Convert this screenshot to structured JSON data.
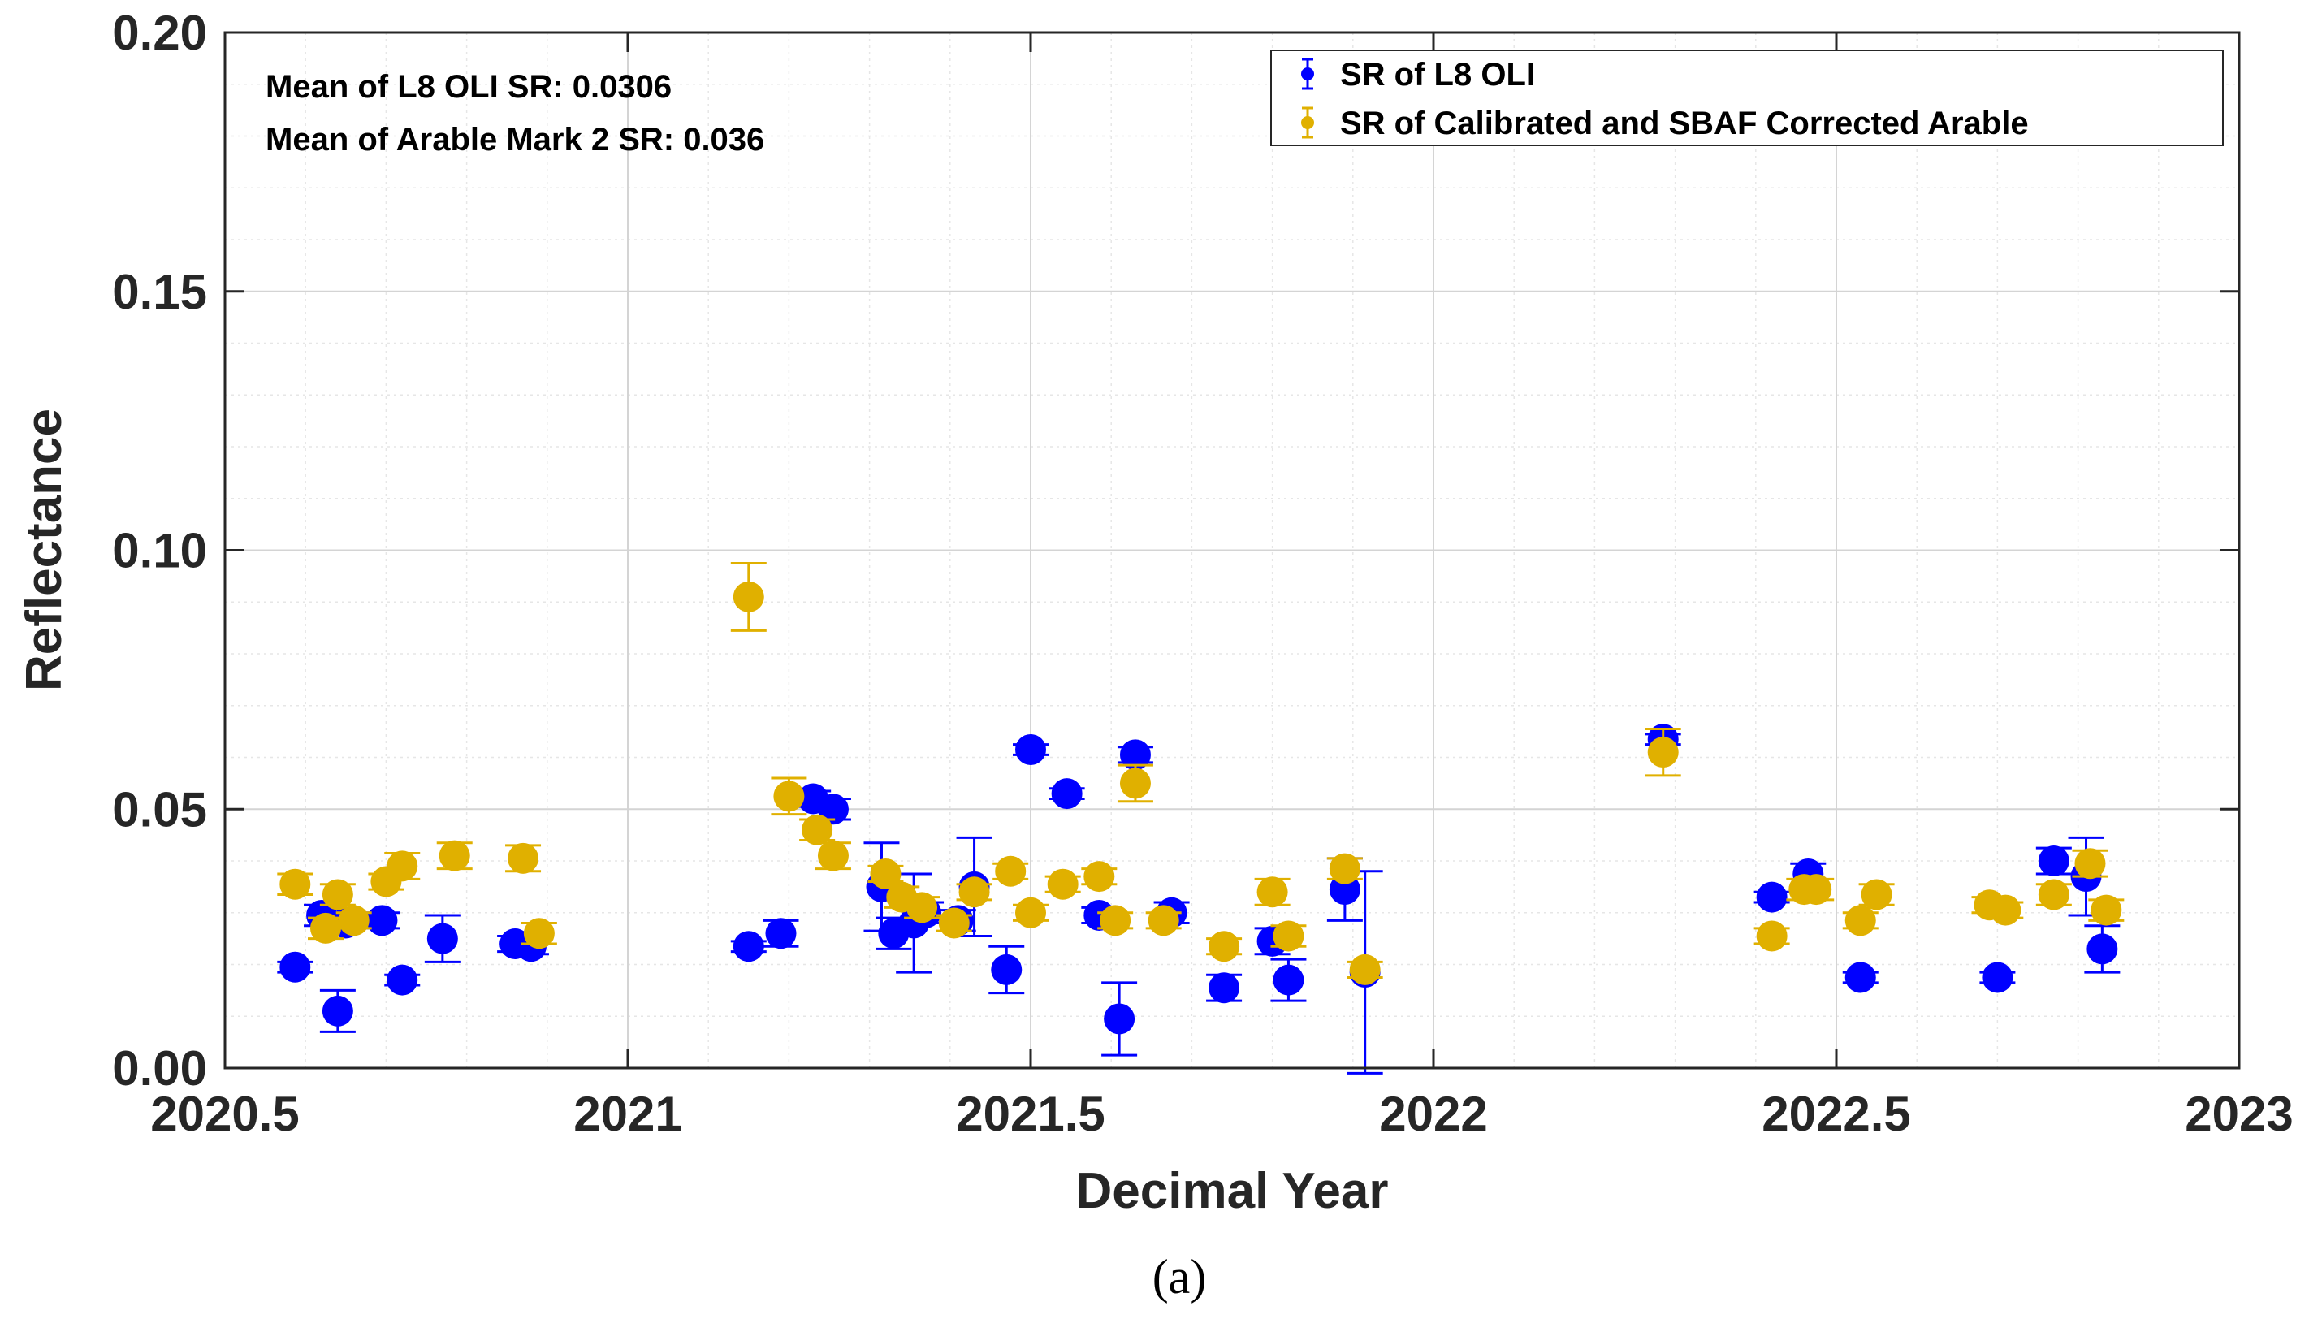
{
  "chart_data": {
    "type": "scatter",
    "title": "",
    "xlabel": "Decimal Year",
    "ylabel": "Reflectance",
    "xlim": [
      2020.5,
      2023
    ],
    "ylim": [
      0,
      0.2
    ],
    "x_ticks": [
      2020.5,
      2021,
      2021.5,
      2022,
      2022.5,
      2023
    ],
    "x_tick_labels": [
      "2020.5",
      "2021",
      "2021.5",
      "2022",
      "2022.5",
      "2023"
    ],
    "y_ticks": [
      0,
      0.05,
      0.1,
      0.15,
      0.2
    ],
    "y_tick_labels": [
      "0.00",
      "0.05",
      "0.10",
      "0.15",
      "0.20"
    ],
    "grid": true,
    "legend_position": "top-right",
    "annotations": [
      "Mean of L8 OLI SR: 0.0306",
      "Mean of Arable Mark 2 SR: 0.036"
    ],
    "caption": "(a)",
    "series": [
      {
        "name": "SR of L8 OLI",
        "color": "#0000ff",
        "x": [
          2020.587,
          2020.62,
          2020.64,
          2020.65,
          2020.695,
          2020.72,
          2020.77,
          2020.86,
          2020.88,
          2021.15,
          2021.19,
          2021.23,
          2021.255,
          2021.315,
          2021.33,
          2021.355,
          2021.37,
          2021.41,
          2021.43,
          2021.47,
          2021.5,
          2021.545,
          2021.585,
          2021.61,
          2021.63,
          2021.675,
          2021.74,
          2021.8,
          2021.82,
          2021.89,
          2021.915,
          2022.285,
          2022.42,
          2022.465,
          2022.53,
          2022.7,
          2022.77,
          2022.81,
          2022.83
        ],
        "y": [
          0.0195,
          0.0295,
          0.011,
          0.028,
          0.0285,
          0.017,
          0.025,
          0.024,
          0.0235,
          0.0235,
          0.026,
          0.052,
          0.05,
          0.035,
          0.026,
          0.028,
          0.03,
          0.0285,
          0.035,
          0.019,
          0.0615,
          0.053,
          0.0295,
          0.0095,
          0.0605,
          0.03,
          0.0155,
          0.0245,
          0.017,
          0.0345,
          0.0185,
          0.0635,
          0.033,
          0.0375,
          0.0175,
          0.0175,
          0.04,
          0.037,
          0.023
        ],
        "error": [
          0.001,
          0.002,
          0.004,
          0.001,
          0.0015,
          0.001,
          0.0045,
          0.0015,
          0.0015,
          0.001,
          0.0025,
          0.0015,
          0.002,
          0.0085,
          0.003,
          0.0095,
          0.002,
          0.002,
          0.0095,
          0.0045,
          0.001,
          0.001,
          0.0015,
          0.007,
          0.0015,
          0.002,
          0.0025,
          0.0025,
          0.004,
          0.006,
          0.0195,
          0.001,
          0.001,
          0.002,
          0.001,
          0.001,
          0.0025,
          0.0075,
          0.0045
        ]
      },
      {
        "name": "SR of Calibrated and SBAF Corrected Arable",
        "color": "#e0b000",
        "x": [
          2020.587,
          2020.625,
          2020.64,
          2020.66,
          2020.7,
          2020.72,
          2020.785,
          2020.87,
          2020.89,
          2021.15,
          2021.2,
          2021.235,
          2021.255,
          2021.32,
          2021.34,
          2021.365,
          2021.405,
          2021.43,
          2021.475,
          2021.5,
          2021.54,
          2021.585,
          2021.605,
          2021.63,
          2021.665,
          2021.74,
          2021.8,
          2021.82,
          2021.89,
          2021.915,
          2022.285,
          2022.42,
          2022.46,
          2022.475,
          2022.53,
          2022.55,
          2022.69,
          2022.71,
          2022.77,
          2022.815,
          2022.835
        ],
        "y": [
          0.0355,
          0.027,
          0.0335,
          0.0285,
          0.036,
          0.039,
          0.041,
          0.0405,
          0.026,
          0.091,
          0.0525,
          0.046,
          0.041,
          0.0375,
          0.033,
          0.031,
          0.028,
          0.034,
          0.038,
          0.03,
          0.0355,
          0.037,
          0.0285,
          0.055,
          0.0285,
          0.0235,
          0.034,
          0.0255,
          0.0385,
          0.019,
          0.061,
          0.0255,
          0.0345,
          0.0345,
          0.0285,
          0.0335,
          0.0315,
          0.0305,
          0.0335,
          0.0395,
          0.0305
        ],
        "error": [
          0.002,
          0.002,
          0.002,
          0.0015,
          0.0015,
          0.0025,
          0.0025,
          0.0025,
          0.002,
          0.0065,
          0.0035,
          0.002,
          0.0025,
          0.0015,
          0.002,
          0.002,
          0.0015,
          0.0015,
          0.0015,
          0.0015,
          0.0015,
          0.0015,
          0.0015,
          0.0035,
          0.0015,
          0.0015,
          0.0025,
          0.002,
          0.002,
          0.0015,
          0.0045,
          0.0015,
          0.002,
          0.002,
          0.0015,
          0.002,
          0.0015,
          0.0015,
          0.002,
          0.0025,
          0.002
        ]
      }
    ]
  }
}
